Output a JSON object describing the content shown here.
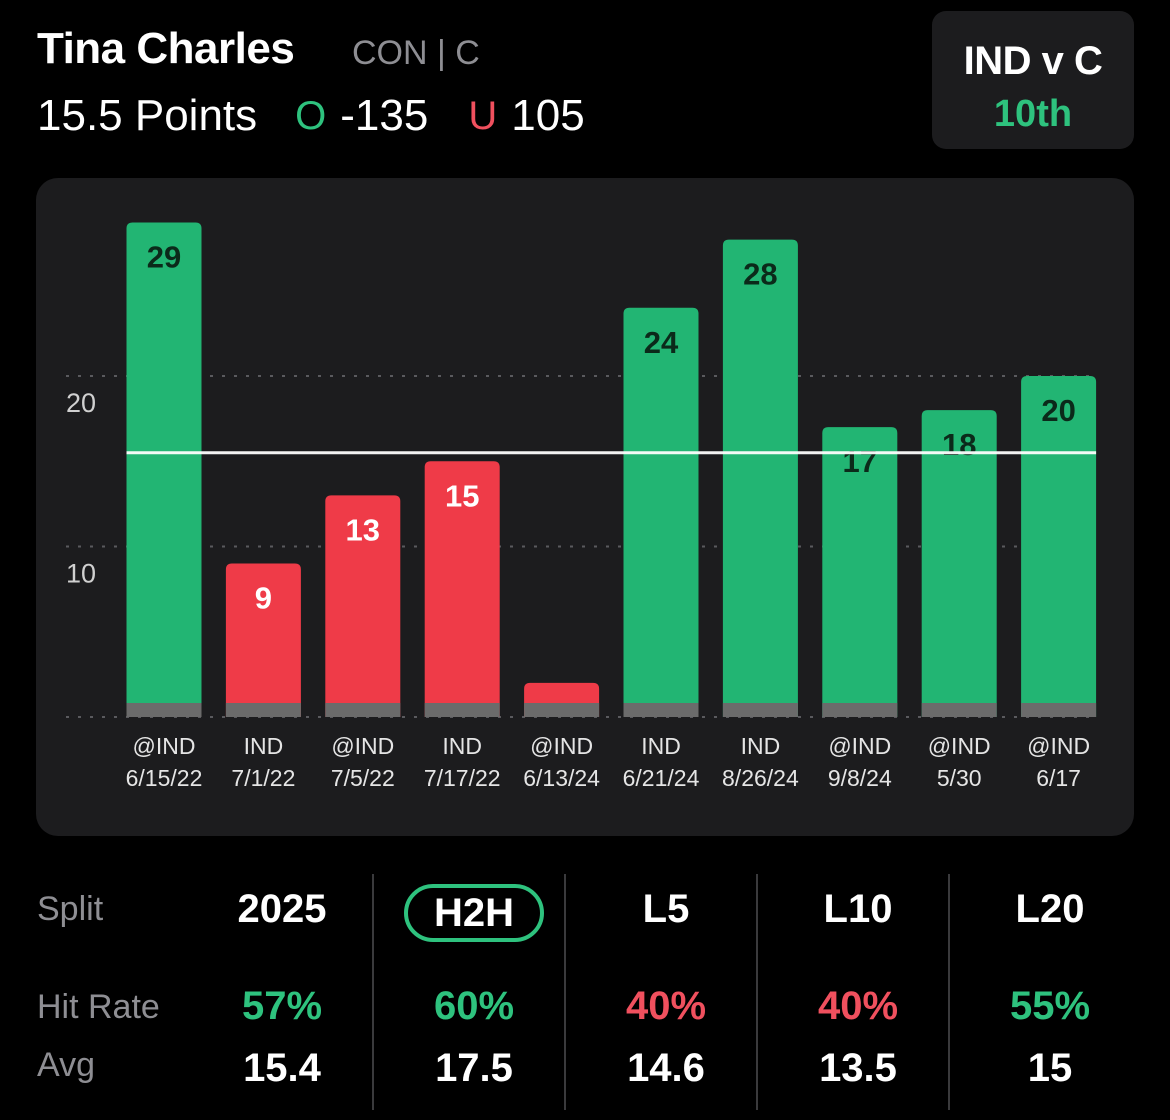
{
  "header": {
    "player_name": "Tina Charles",
    "team_position": "CON | C",
    "prop": "15.5 Points",
    "over_marker": "O",
    "over_odds": "-135",
    "under_marker": "U",
    "under_odds": "105"
  },
  "matchup": {
    "title": "IND v C",
    "rank": "10th"
  },
  "colors": {
    "over": "#22b573",
    "under": "#ef3b48",
    "accent_green": "#2ec27e",
    "accent_red": "#f0505e",
    "card": "#1c1c1e"
  },
  "chart_data": {
    "type": "bar",
    "categories": [
      [
        "@IND",
        "6/15/22"
      ],
      [
        "IND",
        "7/1/22"
      ],
      [
        "@IND",
        "7/5/22"
      ],
      [
        "IND",
        "7/17/22"
      ],
      [
        "@IND",
        "6/13/24"
      ],
      [
        "IND",
        "6/21/24"
      ],
      [
        "IND",
        "8/26/24"
      ],
      [
        "@IND",
        "9/8/24"
      ],
      [
        "@IND",
        "5/30"
      ],
      [
        "@IND",
        "6/17"
      ]
    ],
    "values": [
      29,
      9,
      13,
      15,
      2,
      24,
      28,
      17,
      18,
      20
    ],
    "data_labels": [
      "29",
      "9",
      "13",
      "15",
      "",
      "24",
      "28",
      "17",
      "18",
      "20"
    ],
    "line": 15.5,
    "yticks": [
      10,
      20
    ],
    "ylim": [
      0,
      30
    ],
    "grid": true
  },
  "splits": {
    "row_labels": {
      "split": "Split",
      "hit_rate": "Hit Rate",
      "avg": "Avg"
    },
    "columns": [
      {
        "label": "2025",
        "hit_rate": "57%",
        "avg": "15.4",
        "hit": "green",
        "selected": false
      },
      {
        "label": "H2H",
        "hit_rate": "60%",
        "avg": "17.5",
        "hit": "green",
        "selected": true
      },
      {
        "label": "L5",
        "hit_rate": "40%",
        "avg": "14.6",
        "hit": "red",
        "selected": false
      },
      {
        "label": "L10",
        "hit_rate": "40%",
        "avg": "13.5",
        "hit": "red",
        "selected": false
      },
      {
        "label": "L20",
        "hit_rate": "55%",
        "avg": "15",
        "hit": "green",
        "selected": false
      }
    ]
  }
}
